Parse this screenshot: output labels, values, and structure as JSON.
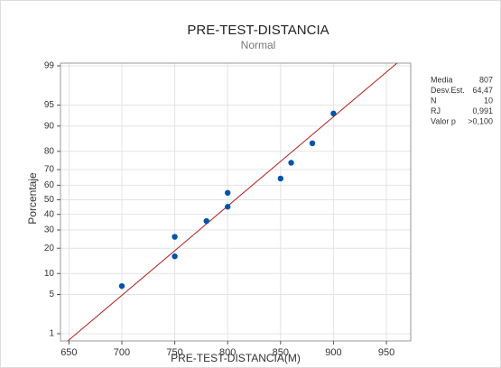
{
  "chart_data": {
    "type": "probability",
    "title": "PRE-TEST-DISTANCIA",
    "subtitle": "Normal",
    "x_label": "PRE-TEST-DISTANCIA(M)",
    "y_label": "Porcentaje",
    "y_scale": "normal-probability",
    "x": [
      700,
      750,
      750,
      780,
      800,
      800,
      850,
      860,
      880,
      900
    ],
    "values": [
      6.7,
      16.3,
      26.0,
      35.6,
      45.2,
      54.8,
      64.4,
      74.0,
      83.7,
      93.3
    ],
    "color": "#0054a6",
    "line_color": "#b22222",
    "xlim": [
      642,
      973
    ],
    "ylim": [
      0.71,
      99.12
    ],
    "xticks": [
      650,
      700,
      750,
      800,
      850,
      900,
      950
    ],
    "yticks": [
      1,
      5,
      10,
      20,
      30,
      40,
      50,
      60,
      70,
      80,
      90,
      95,
      99
    ],
    "grid": true,
    "stats": [
      {
        "name": "Media",
        "value": 807,
        "label": "807"
      },
      {
        "name": "Desv.Est.",
        "value": 64.47,
        "label": "64,47"
      },
      {
        "name": "N",
        "value": 10,
        "label": "10"
      },
      {
        "name": "RJ",
        "value": 0.991,
        "label": "0,991"
      },
      {
        "name": "Valor p",
        "value": 0.1,
        "label": ">0,100"
      }
    ]
  }
}
